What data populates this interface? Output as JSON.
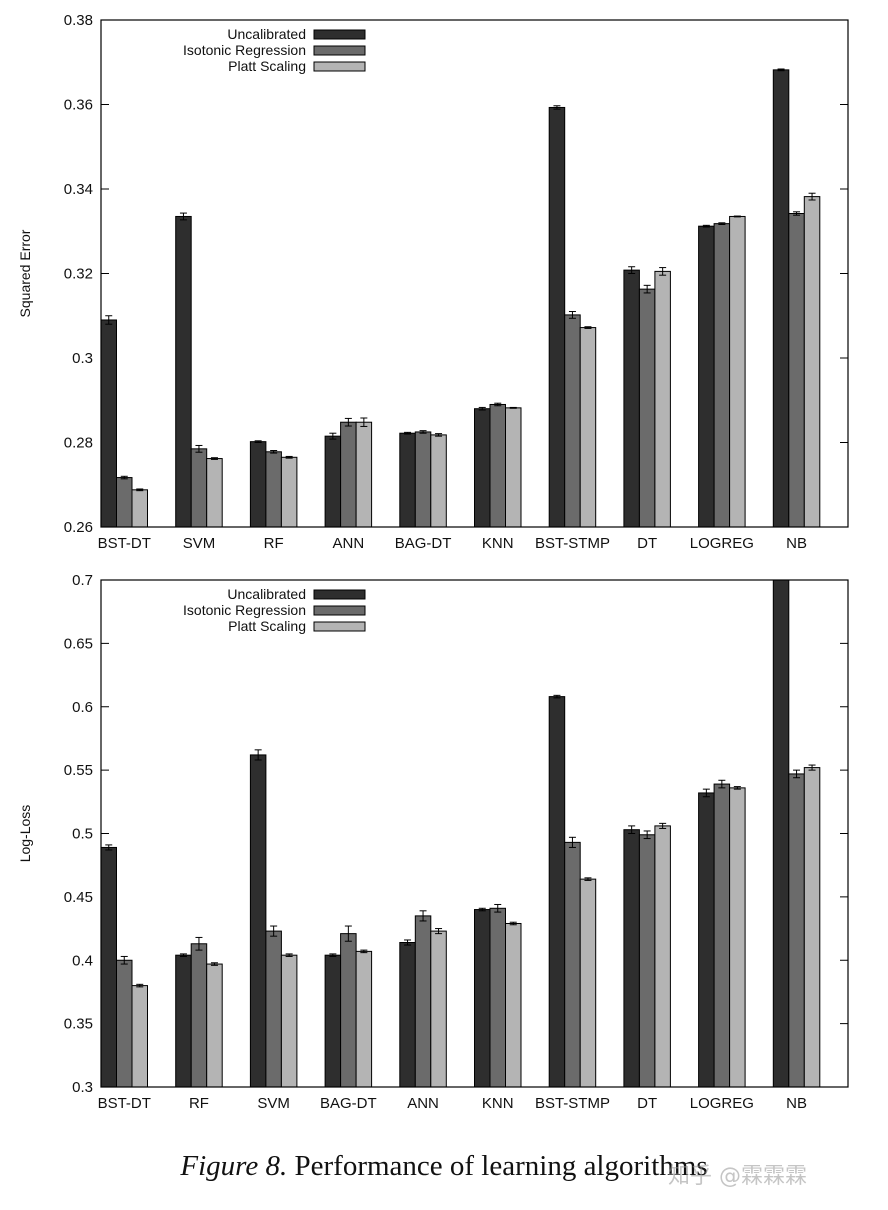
{
  "colors": {
    "Uncalibrated": "#2e2e2e",
    "Isotonic Regression": "#6b6b6b",
    "Platt Scaling": "#b4b4b4",
    "axis": "#000000"
  },
  "chart_data": [
    {
      "type": "bar",
      "ylabel": "Squared Error",
      "ylim": [
        0.26,
        0.38
      ],
      "yticks": [
        "0.26",
        "0.28",
        "0.3",
        "0.32",
        "0.34",
        "0.36",
        "0.38"
      ],
      "categories": [
        "BST-DT",
        "SVM",
        "RF",
        "ANN",
        "BAG-DT",
        "KNN",
        "BST-STMP",
        "DT",
        "LOGREG",
        "NB"
      ],
      "legend_position": "top-left",
      "series": [
        {
          "name": "Uncalibrated",
          "values": [
            0.309,
            0.3335,
            0.2802,
            0.2815,
            0.2822,
            0.288,
            0.3593,
            0.3208,
            0.3312,
            0.3682
          ],
          "errors": [
            0.001,
            0.0008,
            0.0002,
            0.0007,
            0.0002,
            0.0003,
            0.0004,
            0.0008,
            0.0002,
            0.0002
          ]
        },
        {
          "name": "Isotonic Regression",
          "values": [
            0.2717,
            0.2785,
            0.2778,
            0.2848,
            0.2825,
            0.289,
            0.3102,
            0.3163,
            0.3318,
            0.3342
          ],
          "errors": [
            0.0003,
            0.0008,
            0.0003,
            0.0009,
            0.0003,
            0.0003,
            0.0008,
            0.0009,
            0.0002,
            0.0004
          ]
        },
        {
          "name": "Platt Scaling",
          "values": [
            0.2688,
            0.2762,
            0.2765,
            0.2848,
            0.2818,
            0.2882,
            0.3072,
            0.3205,
            0.3335,
            0.3382
          ],
          "errors": [
            0.0002,
            0.0002,
            0.0002,
            0.001,
            0.0003,
            0.0001,
            0.0002,
            0.0009,
            0.0001,
            0.0008
          ]
        }
      ]
    },
    {
      "type": "bar",
      "ylabel": "Log-Loss",
      "ylim": [
        0.3,
        0.7
      ],
      "yticks": [
        "0.3",
        "0.35",
        "0.4",
        "0.45",
        "0.5",
        "0.55",
        "0.6",
        "0.65",
        "0.7"
      ],
      "categories": [
        "BST-DT",
        "RF",
        "SVM",
        "BAG-DT",
        "ANN",
        "KNN",
        "BST-STMP",
        "DT",
        "LOGREG",
        "NB"
      ],
      "legend_position": "top-left",
      "series": [
        {
          "name": "Uncalibrated",
          "values": [
            0.489,
            0.404,
            0.562,
            0.404,
            0.414,
            0.44,
            0.608,
            0.503,
            0.532,
            0.7
          ],
          "errors": [
            0.002,
            0.001,
            0.004,
            0.001,
            0.002,
            0.001,
            0.001,
            0.003,
            0.003,
            0.0
          ]
        },
        {
          "name": "Isotonic Regression",
          "values": [
            0.4,
            0.413,
            0.423,
            0.421,
            0.435,
            0.441,
            0.493,
            0.499,
            0.539,
            0.547
          ],
          "errors": [
            0.003,
            0.005,
            0.004,
            0.006,
            0.004,
            0.003,
            0.004,
            0.003,
            0.003,
            0.003
          ]
        },
        {
          "name": "Platt Scaling",
          "values": [
            0.38,
            0.397,
            0.404,
            0.407,
            0.423,
            0.429,
            0.464,
            0.506,
            0.536,
            0.552
          ],
          "errors": [
            0.001,
            0.001,
            0.001,
            0.001,
            0.002,
            0.001,
            0.001,
            0.002,
            0.001,
            0.002
          ]
        }
      ]
    }
  ],
  "caption": {
    "label": "Figure 8.",
    "text": " Performance of learning algorithms"
  },
  "watermark": "知乎 @霖霖霖"
}
